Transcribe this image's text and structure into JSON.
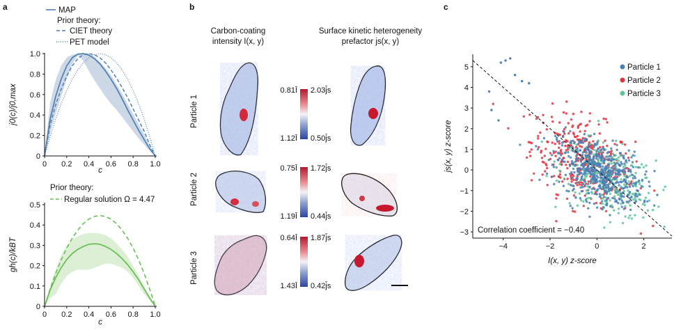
{
  "panel_labels": {
    "a": "a",
    "b": "b",
    "c": "c"
  },
  "panel_a_top": {
    "legend": {
      "map": "MAP",
      "prior_heading": "Prior theory:",
      "ciet": "CIET theory",
      "pet": "PET model"
    },
    "ylabel": "j0(c)/j0,max",
    "xlabel": "c",
    "xticks": [
      "0",
      "0.2",
      "0.4",
      "0.6",
      "0.8",
      "1.0"
    ],
    "yticks": [
      "0",
      "0.2",
      "0.4",
      "0.6",
      "0.8",
      "1.0"
    ]
  },
  "panel_a_bottom": {
    "legend": {
      "prior_heading": "Prior theory:",
      "regular": "Regular solution Ω = 4.47"
    },
    "ylabel": "gh(c)/kBT",
    "xlabel": "c",
    "xticks": [
      "0",
      "0.2",
      "0.4",
      "0.6",
      "0.8",
      "1.0"
    ],
    "yticks": [
      "0",
      "0.1",
      "0.2",
      "0.3",
      "0.4",
      "0.5"
    ]
  },
  "panel_b": {
    "col1_title_line1": "Carbon-coating",
    "col1_title_line2": "intensity I(x, y)",
    "col2_title_line1": "Surface kinetic heterogeneity",
    "col2_title_line2": "prefactor js(x, y)",
    "rows": [
      {
        "label": "Particle 1",
        "i_top": "0.81Ī",
        "i_bot": "1.12Ī",
        "j_top": "2.03j̄s",
        "j_bot": "0.50j̄s"
      },
      {
        "label": "Particle 2",
        "i_top": "0.75Ī",
        "i_bot": "1.19Ī",
        "j_top": "1.72j̄s",
        "j_bot": "0.44j̄s"
      },
      {
        "label": "Particle 3",
        "i_top": "0.64Ī",
        "i_bot": "1.43Ī",
        "j_top": "1.87j̄s",
        "j_bot": "0.42j̄s"
      }
    ],
    "colors": {
      "high": "#c8182e",
      "mid": "#f4f4f8",
      "low": "#3450a8"
    }
  },
  "panel_c": {
    "legend": [
      "Particle 1",
      "Particle 2",
      "Particle 3"
    ],
    "annotation": "Correlation coefficient = −0.40",
    "xlabel": "I(x, y) z-score",
    "ylabel": "js(x, y) z-score",
    "xticks": [
      "−4",
      "−2",
      "0",
      "2"
    ],
    "yticks": [
      "−3",
      "−2",
      "−1",
      "0",
      "1",
      "2",
      "3",
      "4",
      "5"
    ]
  },
  "colors": {
    "blue": "#4f7fb0",
    "green_line": "#6cbf58",
    "green_band": "#dcefd4",
    "blue_band": "#cdd8e6",
    "p1": "#4a7fb5",
    "p2": "#e0333f",
    "p3": "#5ec49a"
  },
  "chart_data": [
    {
      "type": "line",
      "title": "",
      "xlabel": "c",
      "ylabel": "j0(c)/j0,max",
      "xlim": [
        0,
        1
      ],
      "ylim": [
        0,
        1
      ],
      "series": [
        {
          "name": "MAP",
          "x": [
            0,
            0.05,
            0.1,
            0.15,
            0.2,
            0.25,
            0.3,
            0.35,
            0.4,
            0.45,
            0.5,
            0.55,
            0.6,
            0.65,
            0.7,
            0.75,
            0.8,
            0.85,
            0.9,
            0.95,
            1.0
          ],
          "values": [
            0.0,
            0.36,
            0.58,
            0.75,
            0.88,
            0.96,
            0.995,
            1.0,
            0.985,
            0.95,
            0.9,
            0.83,
            0.75,
            0.66,
            0.56,
            0.45,
            0.35,
            0.25,
            0.16,
            0.07,
            0.0
          ]
        },
        {
          "name": "CIET theory",
          "x": [
            0,
            0.05,
            0.1,
            0.15,
            0.2,
            0.25,
            0.3,
            0.35,
            0.4,
            0.45,
            0.5,
            0.55,
            0.6,
            0.65,
            0.7,
            0.75,
            0.8,
            0.85,
            0.9,
            0.95,
            1.0
          ],
          "values": [
            0.0,
            0.3,
            0.5,
            0.65,
            0.78,
            0.88,
            0.95,
            0.99,
            1.0,
            0.99,
            0.96,
            0.91,
            0.84,
            0.76,
            0.67,
            0.57,
            0.46,
            0.35,
            0.24,
            0.11,
            0.0
          ]
        },
        {
          "name": "PET model",
          "x": [
            0,
            0.05,
            0.1,
            0.15,
            0.2,
            0.25,
            0.3,
            0.35,
            0.4,
            0.45,
            0.5,
            0.55,
            0.6,
            0.65,
            0.7,
            0.75,
            0.8,
            0.85,
            0.9,
            0.95,
            1.0
          ],
          "values": [
            0.0,
            0.19,
            0.36,
            0.51,
            0.64,
            0.75,
            0.84,
            0.91,
            0.96,
            0.99,
            1.0,
            0.99,
            0.96,
            0.91,
            0.84,
            0.75,
            0.64,
            0.51,
            0.36,
            0.19,
            0.0
          ]
        },
        {
          "name": "MAP band upper",
          "x": [
            0,
            0.05,
            0.1,
            0.15,
            0.2,
            0.25,
            0.3,
            0.35,
            0.4,
            0.45,
            0.5,
            0.55,
            0.6,
            0.65,
            0.7,
            0.75,
            0.8,
            0.85,
            0.9,
            0.95,
            1.0
          ],
          "values": [
            0.0,
            0.52,
            0.74,
            0.88,
            0.96,
            0.99,
            1.0,
            1.0,
            1.0,
            0.97,
            0.92,
            0.86,
            0.79,
            0.7,
            0.61,
            0.51,
            0.41,
            0.31,
            0.21,
            0.1,
            0.0
          ]
        },
        {
          "name": "MAP band lower",
          "x": [
            0,
            0.05,
            0.1,
            0.15,
            0.2,
            0.25,
            0.3,
            0.35,
            0.4,
            0.45,
            0.5,
            0.55,
            0.6,
            0.65,
            0.7,
            0.75,
            0.8,
            0.85,
            0.9,
            0.95,
            1.0
          ],
          "values": [
            0.0,
            0.22,
            0.41,
            0.58,
            0.75,
            0.9,
            0.98,
            0.93,
            0.83,
            0.74,
            0.66,
            0.58,
            0.51,
            0.45,
            0.38,
            0.31,
            0.24,
            0.17,
            0.11,
            0.05,
            0.0
          ]
        }
      ]
    },
    {
      "type": "line",
      "title": "",
      "xlabel": "c",
      "ylabel": "gh(c)/kBT",
      "xlim": [
        0,
        1
      ],
      "ylim": [
        0,
        0.5
      ],
      "series": [
        {
          "name": "MAP",
          "x": [
            0,
            0.05,
            0.1,
            0.15,
            0.2,
            0.25,
            0.3,
            0.35,
            0.4,
            0.45,
            0.5,
            0.55,
            0.6,
            0.65,
            0.7,
            0.75,
            0.8,
            0.85,
            0.9,
            0.95,
            1.0
          ],
          "values": [
            0.0,
            0.08,
            0.14,
            0.19,
            0.23,
            0.26,
            0.28,
            0.295,
            0.305,
            0.308,
            0.305,
            0.295,
            0.28,
            0.26,
            0.235,
            0.205,
            0.17,
            0.13,
            0.085,
            0.04,
            0.0
          ]
        },
        {
          "name": "Regular solution Ω = 4.47",
          "x": [
            0,
            0.05,
            0.1,
            0.15,
            0.2,
            0.25,
            0.3,
            0.35,
            0.4,
            0.45,
            0.5,
            0.55,
            0.6,
            0.65,
            0.7,
            0.75,
            0.8,
            0.85,
            0.9,
            0.95,
            1.0
          ],
          "values": [
            0.0,
            0.085,
            0.161,
            0.228,
            0.286,
            0.335,
            0.375,
            0.407,
            0.429,
            0.442,
            0.447,
            0.442,
            0.429,
            0.407,
            0.375,
            0.335,
            0.286,
            0.228,
            0.161,
            0.085,
            0.0
          ]
        },
        {
          "name": "band upper",
          "x": [
            0,
            0.05,
            0.1,
            0.15,
            0.2,
            0.25,
            0.3,
            0.35,
            0.4,
            0.45,
            0.5,
            0.55,
            0.6,
            0.65,
            0.7,
            0.75,
            0.8,
            0.85,
            0.9,
            0.95,
            1.0
          ],
          "values": [
            0.0,
            0.1,
            0.18,
            0.25,
            0.3,
            0.33,
            0.345,
            0.355,
            0.36,
            0.36,
            0.358,
            0.35,
            0.335,
            0.31,
            0.28,
            0.245,
            0.2,
            0.15,
            0.1,
            0.05,
            0.0
          ]
        },
        {
          "name": "band lower",
          "x": [
            0,
            0.05,
            0.1,
            0.15,
            0.2,
            0.25,
            0.3,
            0.35,
            0.4,
            0.45,
            0.5,
            0.55,
            0.6,
            0.65,
            0.7,
            0.75,
            0.8,
            0.85,
            0.9,
            0.95,
            1.0
          ],
          "values": [
            0.0,
            0.04,
            0.06,
            0.11,
            0.15,
            0.17,
            0.18,
            0.18,
            0.18,
            0.19,
            0.2,
            0.21,
            0.21,
            0.2,
            0.19,
            0.17,
            0.14,
            0.1,
            0.06,
            0.03,
            0.0
          ]
        }
      ]
    },
    {
      "type": "scatter",
      "title": "",
      "xlabel": "I(x, y) z-score",
      "ylabel": "js(x, y) z-score",
      "xlim": [
        -5.3,
        3.2
      ],
      "ylim": [
        -3.3,
        5.6
      ],
      "series": [
        {
          "name": "Particle 1",
          "center": [
            0.1,
            -0.1
          ],
          "spread": [
            0.9,
            0.8
          ]
        },
        {
          "name": "Particle 2",
          "center": [
            -0.6,
            0.5
          ],
          "spread": [
            1.1,
            1.1
          ]
        },
        {
          "name": "Particle 3",
          "center": [
            0.5,
            -0.5
          ],
          "spread": [
            1.0,
            0.9
          ]
        }
      ],
      "reference_line": {
        "slope": -1,
        "intercept": 0
      },
      "correlation_coefficient": -0.4
    }
  ]
}
